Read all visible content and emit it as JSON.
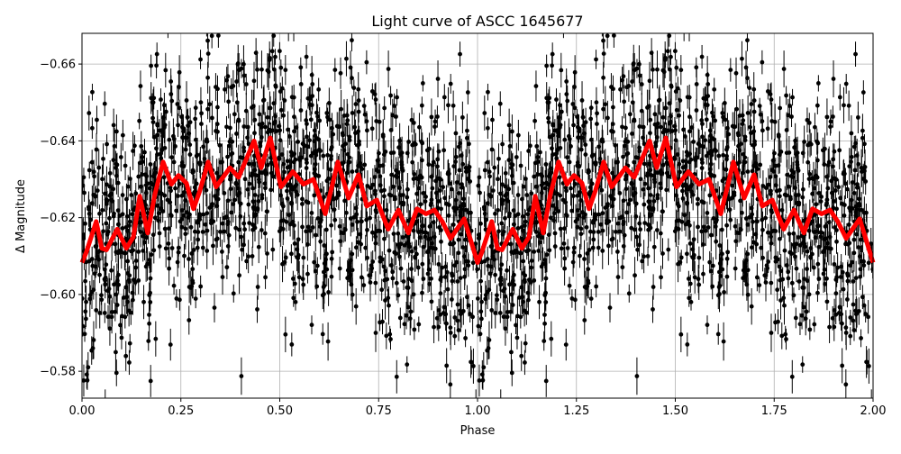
{
  "chart_data": {
    "type": "scatter",
    "title": "Light curve of ASCC 1645677",
    "xlabel": "Phase",
    "ylabel": "Δ Magnitude",
    "xlim": [
      0,
      2
    ],
    "ylim": [
      -0.668,
      -0.573
    ],
    "y_inverted": true,
    "grid": true,
    "x_ticks": [
      "0.00",
      "0.25",
      "0.50",
      "0.75",
      "1.00",
      "1.25",
      "1.50",
      "1.75",
      "2.00"
    ],
    "x_tick_values": [
      0,
      0.25,
      0.5,
      0.75,
      1.0,
      1.25,
      1.5,
      1.75,
      2.0
    ],
    "y_ticks": [
      "−0.66",
      "−0.64",
      "−0.62",
      "−0.60",
      "−0.58"
    ],
    "y_tick_values": [
      -0.66,
      -0.64,
      -0.62,
      -0.6,
      -0.58
    ],
    "series": [
      {
        "kind": "errorbar-scatter",
        "color": "#000000",
        "description_visible": "observations with error bars, repeated over two phase cycles"
      },
      {
        "kind": "line",
        "color": "#ff0000",
        "period_phase": 1,
        "x": [
          0,
          0.011,
          0.036,
          0.05,
          0.062,
          0.089,
          0.112,
          0.13,
          0.146,
          0.166,
          0.184,
          0.205,
          0.226,
          0.244,
          0.264,
          0.282,
          0.298,
          0.319,
          0.339,
          0.374,
          0.396,
          0.435,
          0.453,
          0.476,
          0.503,
          0.533,
          0.56,
          0.585,
          0.615,
          0.647,
          0.674,
          0.699,
          0.72,
          0.745,
          0.774,
          0.8,
          0.825,
          0.847,
          0.87,
          0.891,
          0.911,
          0.932,
          0.966,
          1.0
        ],
        "y": [
          -0.6083,
          -0.611,
          -0.619,
          -0.612,
          -0.6116,
          -0.617,
          -0.612,
          -0.615,
          -0.6256,
          -0.616,
          -0.626,
          -0.6345,
          -0.6287,
          -0.631,
          -0.629,
          -0.6223,
          -0.627,
          -0.6345,
          -0.628,
          -0.633,
          -0.6305,
          -0.64,
          -0.633,
          -0.6408,
          -0.628,
          -0.632,
          -0.6287,
          -0.63,
          -0.621,
          -0.6345,
          -0.6251,
          -0.6312,
          -0.623,
          -0.6246,
          -0.617,
          -0.622,
          -0.616,
          -0.6223,
          -0.621,
          -0.622,
          -0.619,
          -0.6146,
          -0.6197,
          -0.6083
        ]
      }
    ]
  }
}
